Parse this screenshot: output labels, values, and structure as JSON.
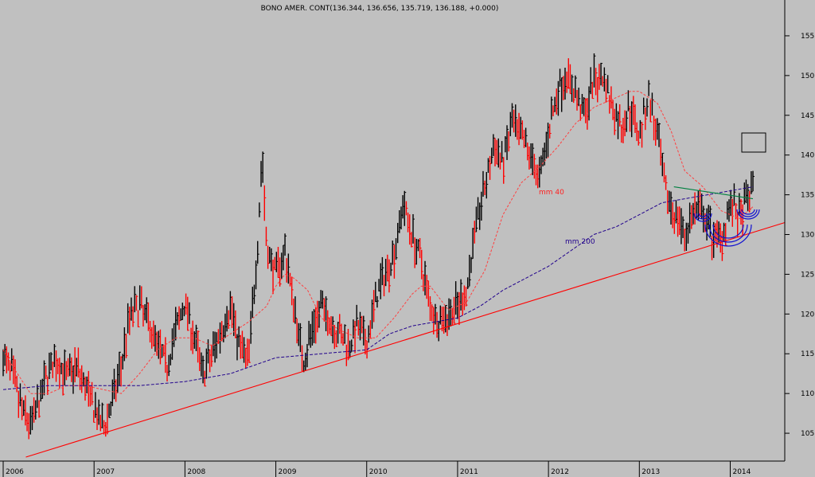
{
  "chart_data": {
    "type": "line",
    "title": "BONO AMER. CONT(136.344, 136.656, 135.719, 136.188, +0.000)",
    "x_tick_labels": [
      "2006",
      "2007",
      "2008",
      "2009",
      "2010",
      "2011",
      "2012",
      "2013",
      "2014"
    ],
    "y_tick_labels": [
      "105",
      "110",
      "115",
      "120",
      "125",
      "130",
      "135",
      "140",
      "145",
      "150",
      "155"
    ],
    "ylim": [
      101.5,
      157.5
    ],
    "xlim": [
      2006.0,
      2014.6
    ],
    "grid": false,
    "background_color": "#c0c0c0",
    "annotations": [
      {
        "text": "mm 40",
        "color": "#ff2020"
      },
      {
        "text": "mm 200",
        "color": "#20008c"
      }
    ],
    "series": [
      {
        "style": "price-bars",
        "colors": [
          "#ff0000",
          "#000000"
        ],
        "x": [
          2006.0,
          2006.1,
          2006.2,
          2006.3,
          2006.4,
          2006.5,
          2006.6,
          2006.7,
          2006.8,
          2006.9,
          2007.0,
          2007.1,
          2007.2,
          2007.3,
          2007.35,
          2007.4,
          2007.5,
          2007.6,
          2007.7,
          2007.8,
          2007.9,
          2008.0,
          2008.1,
          2008.2,
          2008.3,
          2008.4,
          2008.5,
          2008.6,
          2008.7,
          2008.8,
          2008.85,
          2008.9,
          2009.0,
          2009.1,
          2009.2,
          2009.3,
          2009.4,
          2009.5,
          2009.6,
          2009.7,
          2009.8,
          2009.9,
          2010.0,
          2010.1,
          2010.2,
          2010.3,
          2010.4,
          2010.5,
          2010.6,
          2010.7,
          2010.8,
          2010.9,
          2011.0,
          2011.1,
          2011.2,
          2011.3,
          2011.4,
          2011.5,
          2011.6,
          2011.7,
          2011.8,
          2011.9,
          2012.0,
          2012.1,
          2012.2,
          2012.3,
          2012.4,
          2012.5,
          2012.6,
          2012.7,
          2012.8,
          2012.9,
          2013.0,
          2013.1,
          2013.2,
          2013.3,
          2013.4,
          2013.5,
          2013.6,
          2013.7,
          2013.8,
          2013.9,
          2014.0,
          2014.1,
          2014.2,
          2014.25
        ],
        "values": [
          114.5,
          112.5,
          108.0,
          106.0,
          109.0,
          113.0,
          114.0,
          112.0,
          113.5,
          111.0,
          108.0,
          105.5,
          109.0,
          113.5,
          117.0,
          120.0,
          121.0,
          119.0,
          116.0,
          113.5,
          118.0,
          121.5,
          117.0,
          112.5,
          115.0,
          118.0,
          121.0,
          116.0,
          114.0,
          129.0,
          140.5,
          128.0,
          125.0,
          128.0,
          121.0,
          114.0,
          118.0,
          121.0,
          119.0,
          117.5,
          116.0,
          118.5,
          116.0,
          122.0,
          125.0,
          127.5,
          134.0,
          130.0,
          126.5,
          121.0,
          119.0,
          120.0,
          121.0,
          123.0,
          131.0,
          136.0,
          141.0,
          139.0,
          144.0,
          142.0,
          140.0,
          137.0,
          143.0,
          148.0,
          150.0,
          147.5,
          145.0,
          149.5,
          150.0,
          146.0,
          143.5,
          146.0,
          142.5,
          147.5,
          142.0,
          134.5,
          132.5,
          130.0,
          133.0,
          132.5,
          130.0,
          129.5,
          134.0,
          132.0,
          134.5,
          136.2
        ]
      },
      {
        "name": "mm 40",
        "style": "dashed",
        "color": "#ff4040",
        "x": [
          2006.0,
          2006.1,
          2006.3,
          2006.5,
          2006.7,
          2006.9,
          2007.1,
          2007.3,
          2007.5,
          2007.7,
          2007.9,
          2008.1,
          2008.3,
          2008.5,
          2008.7,
          2008.9,
          2009.0,
          2009.1,
          2009.2,
          2009.35,
          2009.5,
          2009.7,
          2009.9,
          2010.1,
          2010.3,
          2010.5,
          2010.6,
          2010.7,
          2010.9,
          2011.1,
          2011.3,
          2011.5,
          2011.7,
          2011.9,
          2012.1,
          2012.3,
          2012.5,
          2012.7,
          2012.8,
          2012.9,
          2013.0,
          2013.2,
          2013.35,
          2013.5,
          2013.7,
          2013.9,
          2014.1,
          2014.25
        ],
        "values": [
          115.5,
          113.5,
          110.0,
          110.0,
          111.0,
          111.0,
          110.5,
          110.0,
          112.5,
          115.5,
          117.0,
          117.0,
          116.0,
          117.5,
          119.0,
          121.0,
          123.5,
          125.0,
          124.5,
          123.0,
          119.5,
          118.0,
          117.0,
          117.0,
          119.5,
          122.5,
          123.5,
          123.5,
          120.5,
          121.5,
          125.5,
          132.5,
          136.5,
          138.5,
          141.0,
          144.0,
          146.0,
          147.0,
          147.5,
          148.0,
          148.0,
          146.5,
          143.0,
          138.0,
          136.0,
          133.0,
          132.0,
          133.5
        ]
      },
      {
        "name": "mm 200",
        "style": "dashed",
        "color": "#20008c",
        "x": [
          2006.0,
          2006.5,
          2007.0,
          2007.5,
          2008.0,
          2008.5,
          2009.0,
          2009.5,
          2010.0,
          2010.25,
          2010.5,
          2010.75,
          2011.0,
          2011.25,
          2011.5,
          2011.75,
          2012.0,
          2012.25,
          2012.5,
          2012.75,
          2013.0,
          2013.25,
          2013.5,
          2013.75,
          2014.0,
          2014.25
        ],
        "values": [
          110.5,
          111.0,
          111.0,
          111.0,
          111.5,
          112.5,
          114.5,
          115.0,
          115.5,
          117.5,
          118.5,
          119.0,
          119.5,
          121.0,
          123.0,
          124.5,
          126.0,
          128.0,
          130.0,
          131.0,
          132.5,
          134.0,
          134.5,
          135.0,
          135.5,
          136.0
        ]
      },
      {
        "name": "trendline",
        "style": "solid",
        "color": "#ff0000",
        "x": [
          2006.25,
          2014.6
        ],
        "values": [
          102.0,
          131.5
        ]
      },
      {
        "name": "neckline",
        "style": "solid",
        "color": "#008040",
        "x": [
          2013.38,
          2014.25
        ],
        "values": [
          136.0,
          134.5
        ]
      }
    ]
  }
}
